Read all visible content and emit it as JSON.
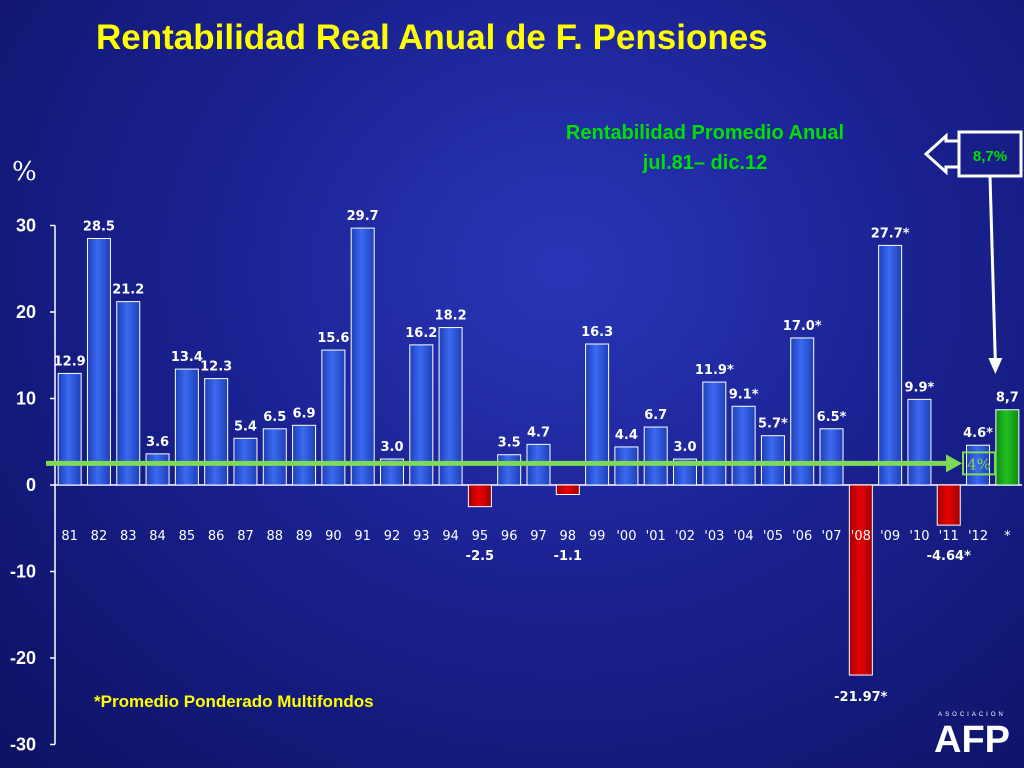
{
  "title": "Rentabilidad Real Anual de F. Pensiones",
  "average_box": {
    "line1": "Rentabilidad Promedio Anual",
    "line2": "jul.81– dic.12",
    "value_label": "8,7%"
  },
  "footnote": "*Promedio Ponderado Multifondos",
  "logo": {
    "small_text": "ASOCIACION",
    "main_text": "AFP"
  },
  "colors": {
    "positive_bar": "#3b6af0",
    "negative_bar": "#e80000",
    "highlight_bar": "#22c022",
    "reference_line": "#7ed957",
    "title": "#ffff00"
  },
  "chart_data": {
    "type": "bar",
    "unit_symbol": "%",
    "ylim": [
      -30,
      30
    ],
    "y_ticks": [
      "30",
      "20",
      "10",
      "0",
      "-10",
      "-20",
      "-30"
    ],
    "reference_line": {
      "value": 2.5,
      "label": "4%"
    },
    "categories": [
      "81",
      "82",
      "83",
      "84",
      "85",
      "86",
      "87",
      "88",
      "89",
      "90",
      "91",
      "92",
      "93",
      "94",
      "95",
      "96",
      "97",
      "98",
      "99",
      "'00",
      "'01",
      "'02",
      "'03",
      "'04",
      "'05",
      "'06",
      "'07",
      "'08",
      "'09",
      "'10",
      "'11",
      "'12",
      "*"
    ],
    "values": [
      12.9,
      28.5,
      21.2,
      3.6,
      13.4,
      12.3,
      5.4,
      6.5,
      6.9,
      15.6,
      29.7,
      3.0,
      16.2,
      18.2,
      -2.5,
      3.5,
      4.7,
      -1.1,
      16.3,
      4.4,
      6.7,
      3.0,
      11.9,
      9.1,
      5.7,
      17.0,
      6.5,
      -21.97,
      27.7,
      9.9,
      -4.64,
      4.6,
      8.7
    ],
    "data_labels": [
      "12.9",
      "28.5",
      "21.2",
      "3.6",
      "13.4",
      "12.3",
      "5.4",
      "6.5",
      "6.9",
      "15.6",
      "29.7",
      "3.0",
      "16.2",
      "18.2",
      "-2.5",
      "3.5",
      "4.7",
      "-1.1",
      "16.3",
      "4.4",
      "6.7",
      "3.0",
      "11.9*",
      "9.1*",
      "5.7*",
      "17.0*",
      "6.5*",
      "-21.97*",
      "27.7*",
      "9.9*",
      "-4.64*",
      "4.6*",
      "8,7"
    ],
    "highlight_index": 32
  }
}
